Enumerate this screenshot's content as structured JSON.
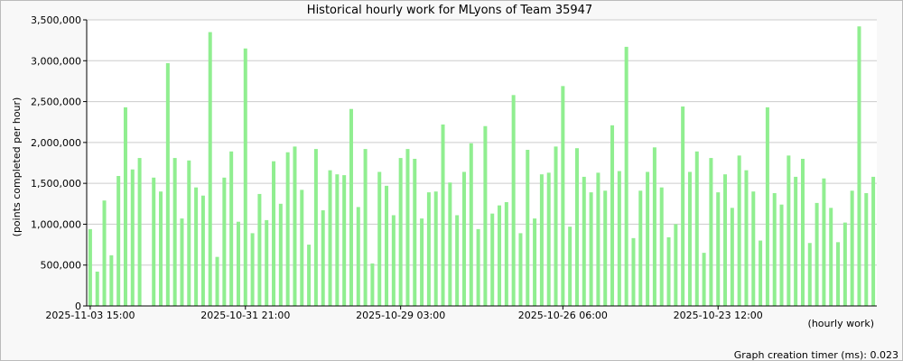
{
  "chart_data": {
    "type": "bar",
    "title": "Historical hourly work for MLyons of Team 35947",
    "y_label": "(points completed per hour)",
    "x_label": "(hourly work)",
    "footer": "Graph creation timer (ms): 0.023",
    "color": "#90ee90",
    "grid": true,
    "categories": [
      "2025-11-03 15:00",
      null,
      null,
      null,
      null,
      null,
      null,
      null,
      null,
      null,
      null,
      null,
      null,
      null,
      null,
      null,
      null,
      null,
      null,
      null,
      null,
      null,
      "2025-10-31 21:00",
      null,
      null,
      null,
      null,
      null,
      null,
      null,
      null,
      null,
      null,
      null,
      null,
      null,
      null,
      null,
      null,
      null,
      null,
      null,
      null,
      null,
      "2025-10-29 03:00",
      null,
      null,
      null,
      null,
      null,
      null,
      null,
      null,
      null,
      null,
      null,
      null,
      null,
      null,
      null,
      null,
      null,
      null,
      null,
      null,
      null,
      null,
      "2025-10-26 06:00",
      null,
      null,
      null,
      null,
      null,
      null,
      null,
      null,
      null,
      null,
      null,
      null,
      null,
      null,
      null,
      null,
      null,
      null,
      null,
      null,
      null,
      "2025-10-23 12:00",
      null,
      null,
      null,
      null,
      null,
      null,
      null,
      null,
      null,
      null,
      null,
      null,
      null,
      null,
      null,
      null,
      null,
      null,
      null,
      null,
      null,
      null
    ],
    "values": [
      940000,
      420000,
      1290000,
      620000,
      1590000,
      2430000,
      1670000,
      1810000,
      null,
      1570000,
      1400000,
      2970000,
      1810000,
      1070000,
      1780000,
      1450000,
      1350000,
      3350000,
      600000,
      1570000,
      1890000,
      1030000,
      3150000,
      890000,
      1370000,
      1050000,
      1770000,
      1250000,
      1880000,
      1950000,
      1420000,
      750000,
      1920000,
      1170000,
      1660000,
      1610000,
      1600000,
      2410000,
      1210000,
      1920000,
      520000,
      1640000,
      1470000,
      1110000,
      1810000,
      1920000,
      1800000,
      1070000,
      1390000,
      1400000,
      2220000,
      1510000,
      1110000,
      1640000,
      1990000,
      940000,
      2200000,
      1130000,
      1230000,
      1270000,
      2580000,
      890000,
      1910000,
      1070000,
      1610000,
      1630000,
      1950000,
      2690000,
      970000,
      1930000,
      1580000,
      1390000,
      1630000,
      1410000,
      2210000,
      1650000,
      3170000,
      830000,
      1410000,
      1640000,
      1940000,
      1450000,
      840000,
      1000000,
      2440000,
      1640000,
      1890000,
      650000,
      1810000,
      1390000,
      1610000,
      1200000,
      1840000,
      1660000,
      1400000,
      800000,
      2430000,
      1380000,
      1240000,
      1840000,
      1580000,
      1800000,
      770000,
      1260000,
      1560000,
      1200000,
      780000,
      1020000,
      1410000,
      3420000,
      1380000,
      1580000
    ],
    "ylim": [
      0,
      3500000
    ],
    "yticks": [
      0,
      {
        "value": 500000,
        "label": "500,000"
      },
      {
        "value": 1000000,
        "label": "1,000,000"
      },
      {
        "value": 1500000,
        "label": "1,500,000"
      },
      {
        "value": 2000000,
        "label": "2,000,000"
      },
      {
        "value": 2500000,
        "label": "2,500,000"
      },
      {
        "value": 3000000,
        "label": "3,000,000"
      },
      {
        "value": 3500000,
        "label": "3,500,000"
      }
    ]
  }
}
